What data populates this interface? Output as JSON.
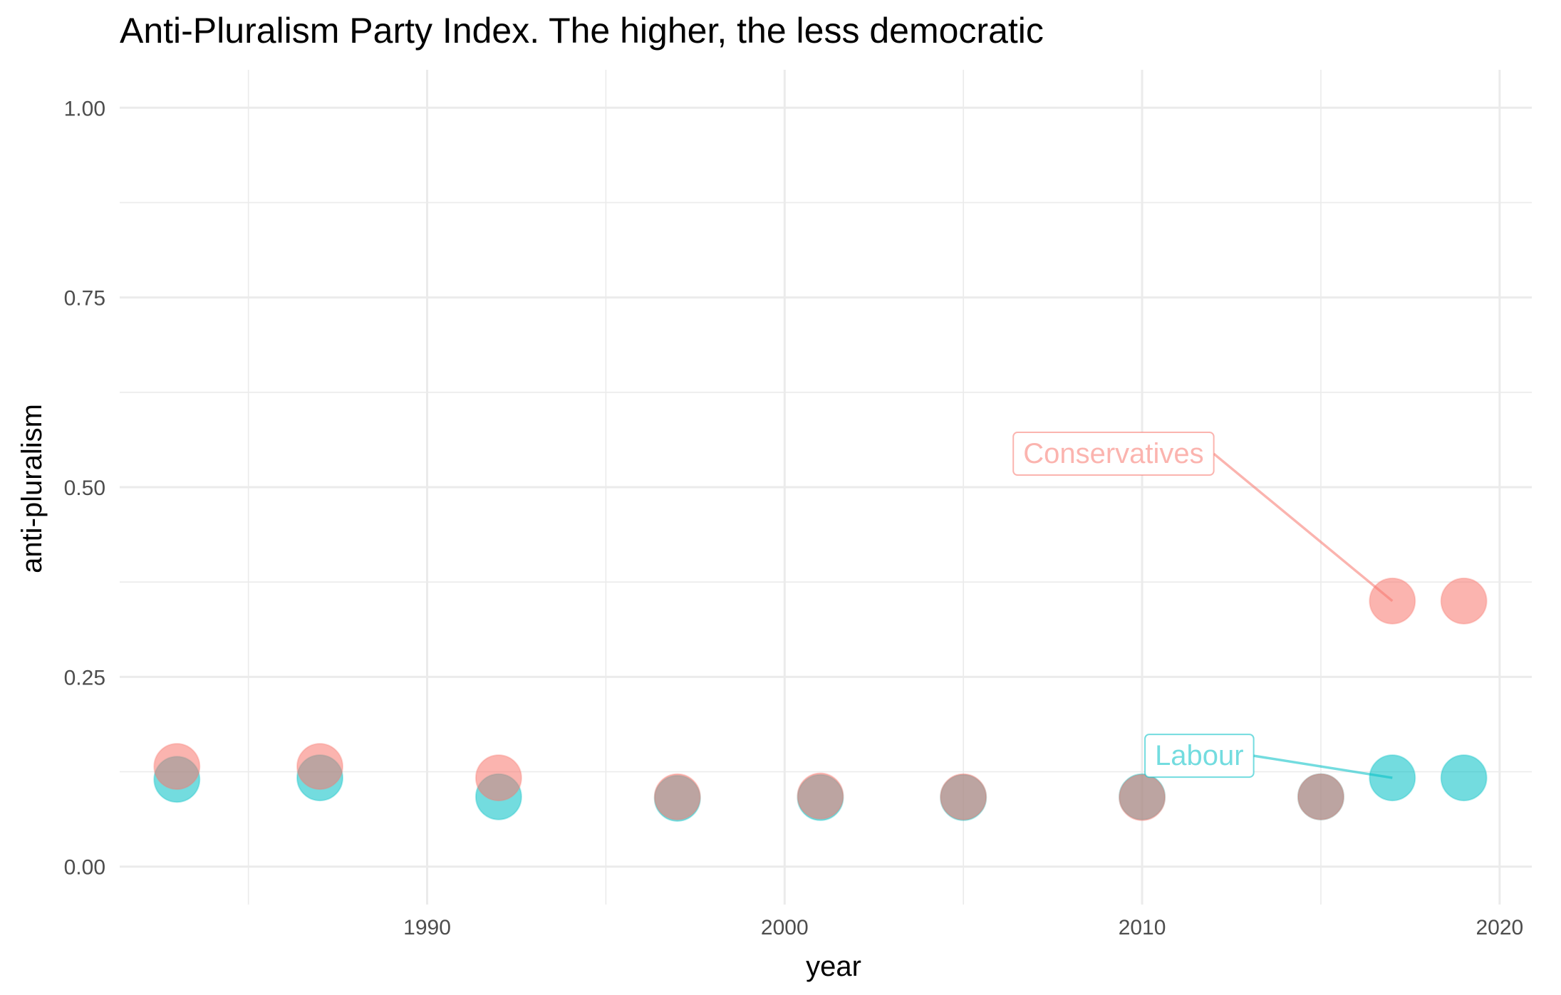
{
  "chart_data": {
    "type": "scatter",
    "title": "Anti-Pluralism Party Index. The higher, the less democratic",
    "xlabel": "year",
    "ylabel": "anti-pluralism",
    "xlim": [
      1981.4,
      2020.9
    ],
    "ylim": [
      -0.05,
      1.05
    ],
    "x_ticks": [
      1990,
      2000,
      2010,
      2020
    ],
    "x_tick_labels": [
      "1990",
      "2000",
      "2010",
      "2020"
    ],
    "y_ticks": [
      0,
      0.25,
      0.5,
      0.75,
      1.0
    ],
    "y_tick_labels": [
      "0.00",
      "0.25",
      "0.50",
      "0.75",
      "1.00"
    ],
    "grid": true,
    "legend": "none",
    "series": [
      {
        "name": "Labour",
        "color": "#00BFC4",
        "points": [
          {
            "x": 1983,
            "y": 0.115
          },
          {
            "x": 1987,
            "y": 0.117
          },
          {
            "x": 1992,
            "y": 0.092
          },
          {
            "x": 1997,
            "y": 0.09
          },
          {
            "x": 2001,
            "y": 0.091
          },
          {
            "x": 2005,
            "y": 0.091
          },
          {
            "x": 2010,
            "y": 0.092
          },
          {
            "x": 2015,
            "y": 0.092
          },
          {
            "x": 2017,
            "y": 0.117
          },
          {
            "x": 2019,
            "y": 0.117
          }
        ]
      },
      {
        "name": "Conservatives",
        "color": "#F8766D",
        "points": [
          {
            "x": 1983,
            "y": 0.132
          },
          {
            "x": 1987,
            "y": 0.132
          },
          {
            "x": 1992,
            "y": 0.117
          },
          {
            "x": 1997,
            "y": 0.092
          },
          {
            "x": 2001,
            "y": 0.093
          },
          {
            "x": 2005,
            "y": 0.092
          },
          {
            "x": 2010,
            "y": 0.091
          },
          {
            "x": 2015,
            "y": 0.092
          },
          {
            "x": 2017,
            "y": 0.35
          },
          {
            "x": 2019,
            "y": 0.35
          }
        ]
      }
    ],
    "annotations": [
      {
        "text": "Conservatives",
        "color": "#F8766D",
        "point": {
          "x": 2017,
          "y": 0.35
        },
        "label_at": {
          "x": 2009.2,
          "y": 0.545
        }
      },
      {
        "text": "Labour",
        "color": "#00BFC4",
        "point": {
          "x": 2017,
          "y": 0.117
        },
        "label_at": {
          "x": 2011.6,
          "y": 0.147
        }
      }
    ]
  }
}
